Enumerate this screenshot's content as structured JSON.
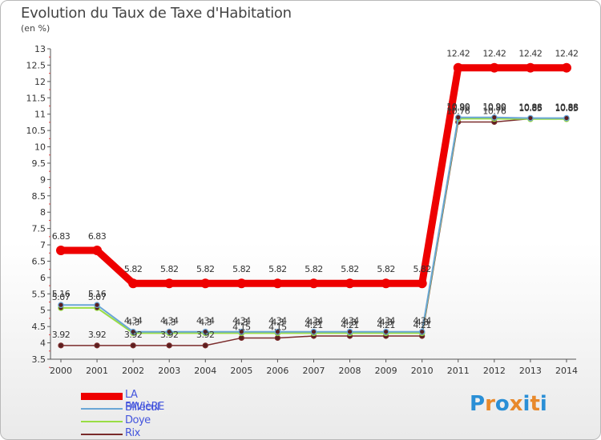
{
  "header": {
    "title": "Evolution du Taux de Taxe d'Habitation",
    "unit": "(en %)"
  },
  "logo": {
    "letters": [
      "P",
      "r",
      "o",
      "x",
      "i",
      "t",
      "i"
    ],
    "colors": [
      "#2a8fd6",
      "#e8892b",
      "#2a8fd6",
      "#e8892b",
      "#2a8fd6",
      "#e8892b",
      "#2a8fd6"
    ]
  },
  "chart_data": {
    "type": "line",
    "title": "Evolution du Taux de Taxe d'Habitation",
    "ylabel": "(en %)",
    "xlabel": "",
    "x": [
      "2000",
      "2001",
      "2002",
      "2003",
      "2004",
      "2005",
      "2006",
      "2007",
      "2008",
      "2009",
      "2010",
      "2011",
      "2012",
      "2013",
      "2014"
    ],
    "ylim": [
      3.5,
      13
    ],
    "yticks": [
      3.5,
      4,
      4.5,
      5,
      5.5,
      6,
      6.5,
      7,
      7.5,
      8,
      8.5,
      9,
      9.5,
      10,
      10.5,
      11,
      11.5,
      12,
      12.5,
      13
    ],
    "grid": false,
    "legend_position": "bottom-left",
    "series": [
      {
        "name": "LA FAVIèRE",
        "color": "#ee0000",
        "values": [
          6.83,
          6.83,
          5.82,
          5.82,
          5.82,
          5.82,
          5.82,
          5.82,
          5.82,
          5.82,
          5.82,
          12.42,
          12.42,
          12.42,
          12.42
        ],
        "labels": [
          "6.83",
          "6.83",
          "5.82",
          "5.82",
          "5.82",
          "5.82",
          "5.82",
          "5.82",
          "5.82",
          "5.82",
          "5.82",
          "12.42",
          "12.42",
          "12.42",
          "12.42"
        ]
      },
      {
        "name": "Billecul",
        "color": "#6aa6d6",
        "values": [
          5.16,
          5.16,
          4.34,
          4.34,
          4.34,
          4.34,
          4.34,
          4.34,
          4.34,
          4.34,
          4.34,
          10.9,
          10.9,
          10.88,
          10.88
        ],
        "labels": [
          "5.16",
          "5.16",
          "4.34",
          "4.34",
          "4.34",
          "4.34",
          "4.34",
          "4.34",
          "4.34",
          "4.34",
          "4.34",
          "10.90",
          "10.90",
          "10.88",
          "10.88"
        ]
      },
      {
        "name": "Doye",
        "color": "#99dd44",
        "values": [
          5.07,
          5.07,
          4.3,
          4.3,
          4.3,
          4.3,
          4.3,
          4.3,
          4.3,
          4.3,
          4.3,
          10.86,
          10.86,
          10.85,
          10.85
        ],
        "labels": [
          "5.07",
          "5.07",
          "4.3",
          "4.3",
          "4.3",
          "4.3",
          "4.3",
          "4.3",
          "4.3",
          "4.3",
          "4.3",
          "10.86",
          "10.86",
          "10.85",
          "10.85"
        ]
      },
      {
        "name": "Rix",
        "color": "#7a2b2b",
        "values": [
          3.92,
          3.92,
          3.92,
          3.92,
          3.92,
          4.15,
          4.15,
          4.21,
          4.21,
          4.21,
          4.21,
          10.76,
          10.76,
          10.86,
          10.86
        ],
        "labels": [
          "3.92",
          "3.92",
          "3.92",
          "3.92",
          "3.92",
          "4.15",
          "4.15",
          "4.21",
          "4.21",
          "4.21",
          "4.21",
          "10.76",
          "10.76",
          "10.86",
          "10.86"
        ]
      }
    ]
  }
}
